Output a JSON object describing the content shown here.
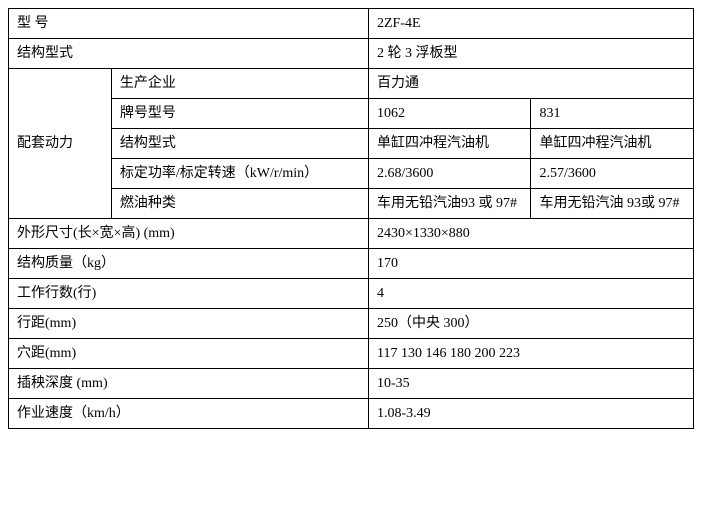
{
  "rows": {
    "model": {
      "label": "型  号",
      "value": "2ZF-4E"
    },
    "structure_type": {
      "label": "结构型式",
      "value": "2 轮 3 浮板型"
    },
    "power": {
      "label": "配套动力",
      "manufacturer": {
        "label": "生产企业",
        "value": "百力通"
      },
      "model_number": {
        "label": "牌号型号",
        "value1": "1062",
        "value2": "831"
      },
      "structure": {
        "label": "结构型式",
        "value1": "单缸四冲程汽油机",
        "value2": "单缸四冲程汽油机"
      },
      "rated_power": {
        "label": "标定功率/标定转速（kW/r/min）",
        "value1": "2.68/3600",
        "value2": "2.57/3600"
      },
      "fuel_type": {
        "label": "燃油种类",
        "value1": "车用无铅汽油93 或 97#",
        "value2": "车用无铅汽油 93或 97#"
      }
    },
    "dimensions": {
      "label": "外形尺寸(长×宽×高) (mm)",
      "value": "2430×1330×880"
    },
    "mass": {
      "label": "结构质量（kg）",
      "value": "170"
    },
    "working_rows": {
      "label": "工作行数(行)",
      "value": "4"
    },
    "row_spacing": {
      "label": "行距(mm)",
      "value": "250（中央 300）"
    },
    "hole_spacing": {
      "label": "穴距(mm)",
      "value": "117 130 146 180 200 223"
    },
    "planting_depth": {
      "label": "插秧深度 (mm)",
      "value": "10-35"
    },
    "working_speed": {
      "label": "作业速度（km/h）",
      "value": "1.08-3.49"
    }
  }
}
